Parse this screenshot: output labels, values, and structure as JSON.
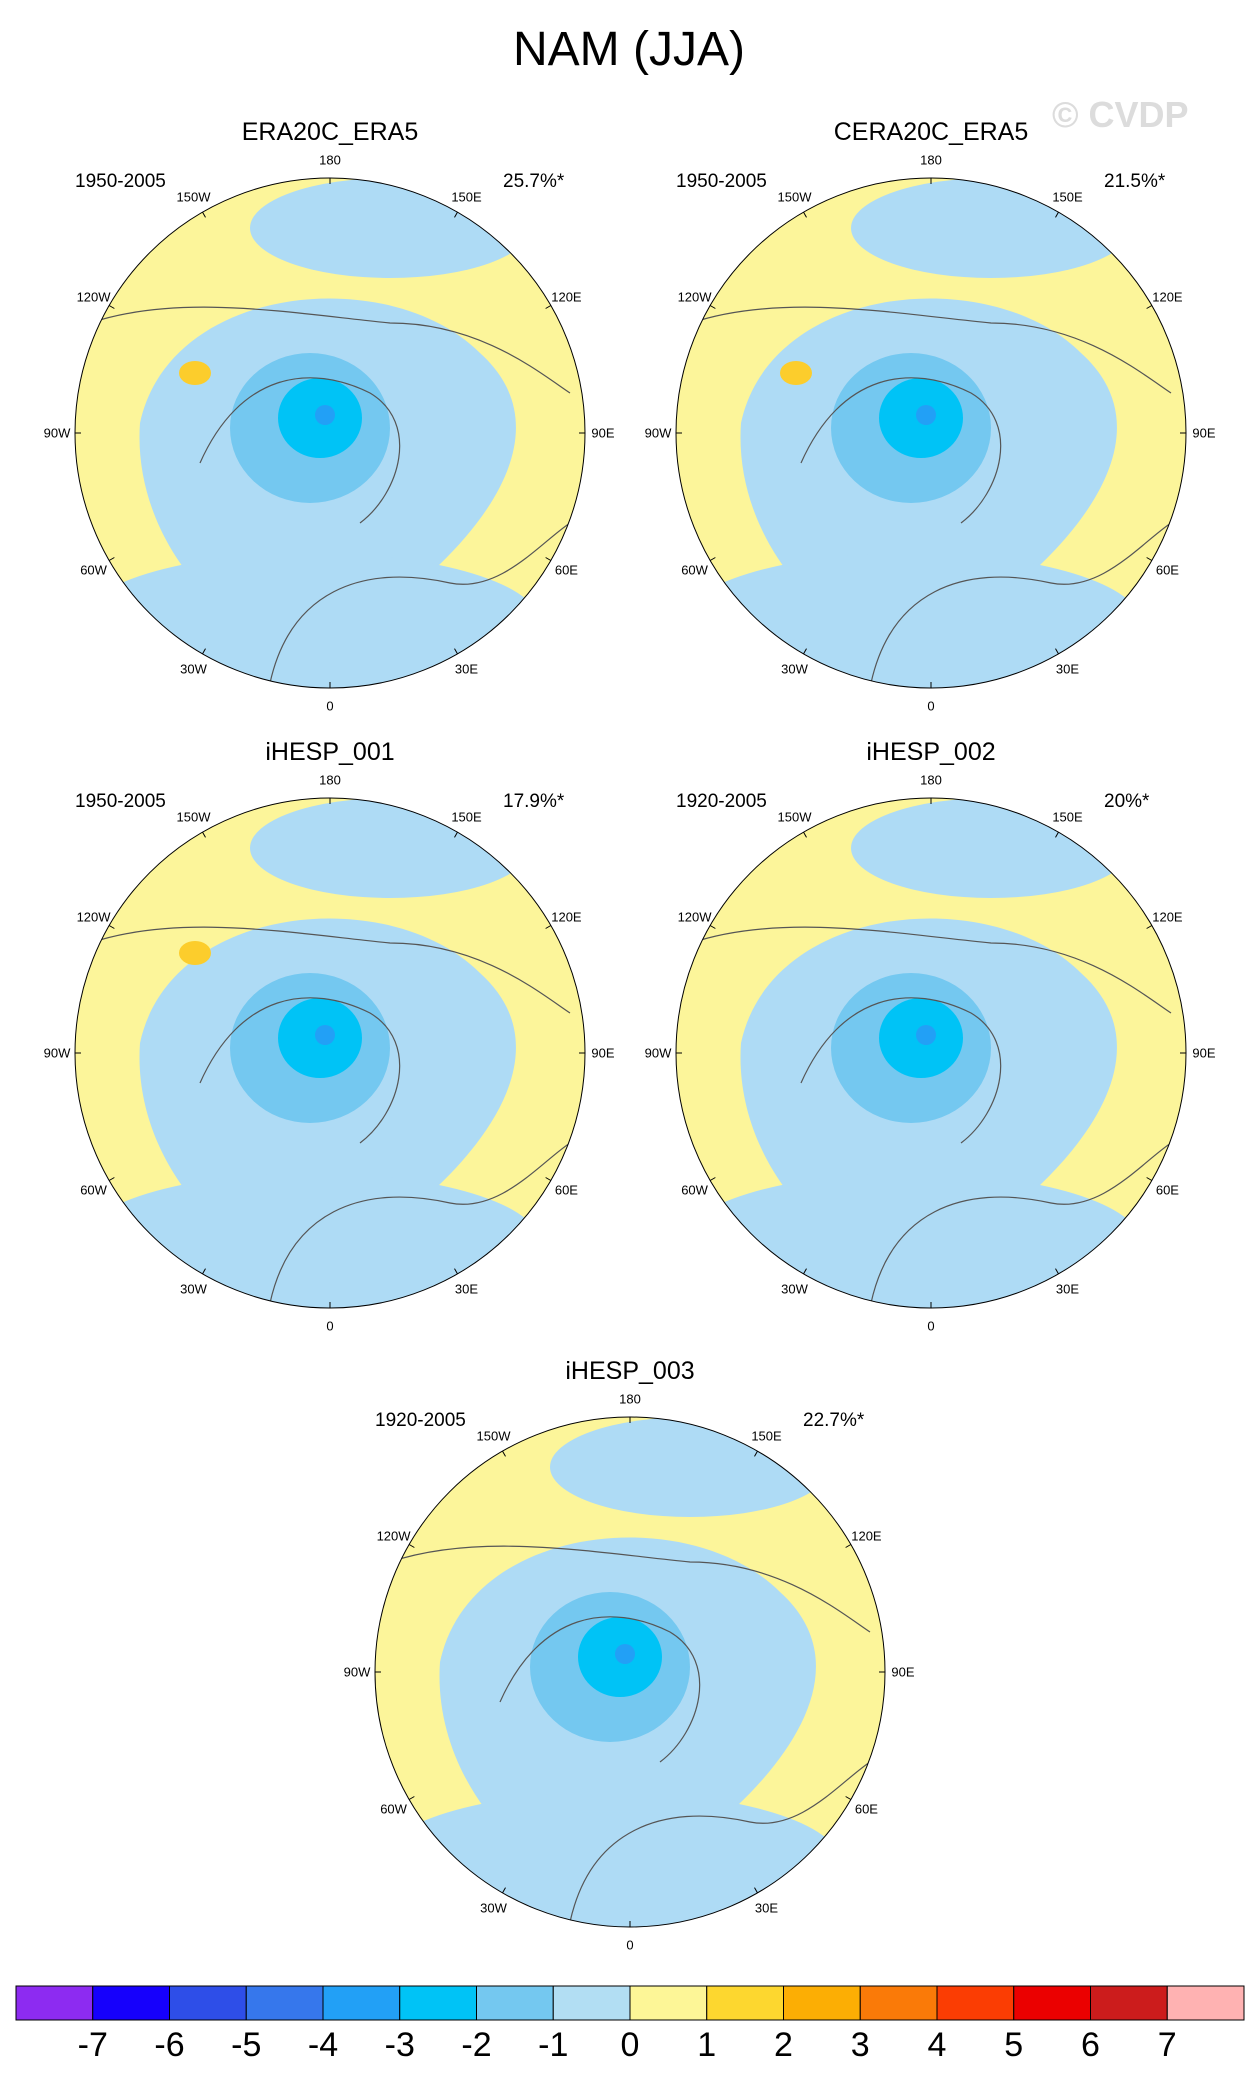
{
  "title": "NAM (JJA)",
  "copyright": "© CVDP",
  "colors": {
    "positive_fill": "#fcf59a",
    "negative_fill": "#aedbf5",
    "coast": "#555555"
  },
  "panels": [
    {
      "title": "ERA20C_ERA5",
      "period": "1950-2005",
      "percent": "25.7%*",
      "cores": [
        {
          "color": "#fccd2c",
          "lvl": 1
        }
      ]
    },
    {
      "title": "CERA20C_ERA5",
      "period": "1950-2005",
      "percent": "21.5%*",
      "cores": [
        {
          "color": "#fccd2c",
          "lvl": 1
        }
      ]
    },
    {
      "title": "iHESP_001",
      "period": "1950-2005",
      "percent": "17.9%*",
      "cores": [
        {
          "color": "#fccd2c",
          "lvl": 1
        }
      ]
    },
    {
      "title": "iHESP_002",
      "period": "1920-2005",
      "percent": "20%*",
      "cores": []
    },
    {
      "title": "iHESP_003",
      "period": "1920-2005",
      "percent": "22.7%*",
      "cores": []
    }
  ],
  "lon_labels": [
    "180",
    "150E",
    "120E",
    "90E",
    "60E",
    "30E",
    "0",
    "30W",
    "60W",
    "90W",
    "120W",
    "150W"
  ],
  "colorbar": {
    "colors": [
      "#8d2bf1",
      "#1600fc",
      "#2e4ee8",
      "#3677ec",
      "#22a0f6",
      "#00c3f6",
      "#74c8f0",
      "#b2def3",
      "#fdf697",
      "#fdd72f",
      "#fcae04",
      "#fa7a08",
      "#fb3d03",
      "#eb0000",
      "#cc1c1c",
      "#ffb2b2"
    ],
    "ticks": [
      "-7",
      "-6",
      "-5",
      "-4",
      "-3",
      "-2",
      "-1",
      "0",
      "1",
      "2",
      "3",
      "4",
      "5",
      "6",
      "7"
    ]
  }
}
